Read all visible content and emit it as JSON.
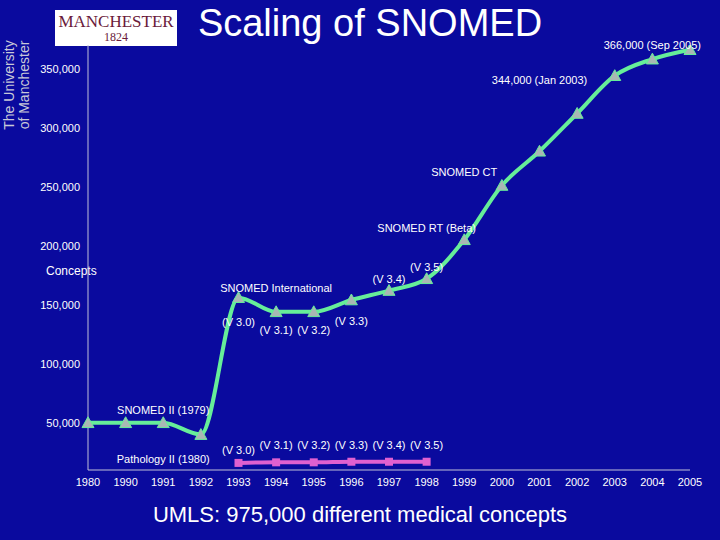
{
  "logo": {
    "name": "MANCHESTER",
    "year": "1824",
    "university": [
      "The University",
      "of Manchester"
    ]
  },
  "chart_data": {
    "type": "line",
    "title": "Scaling of SNOMED",
    "y_label": "Concepts",
    "footnote": "UMLS: 975,000 different medical concepts",
    "categories": [
      "1980",
      "1990",
      "1991",
      "1992",
      "1993",
      "1994",
      "1995",
      "1996",
      "1997",
      "1998",
      "1999",
      "2000",
      "2001",
      "2002",
      "2003",
      "2004",
      "2005"
    ],
    "series": [
      {
        "name": "SNOMED II (1979)",
        "label_x": "1991",
        "label_y": 61000,
        "color": "#66ee99",
        "marker": "triangle",
        "values": [
          50000,
          50000,
          50000,
          40000,
          156000,
          144000,
          144000,
          154000,
          162000,
          172000,
          205000,
          251000,
          280000,
          312000,
          344000,
          358000,
          366000
        ]
      },
      {
        "name": "Pathology II (1980)",
        "label_x": "1991",
        "label_y": 19000,
        "color": "#e060d0",
        "marker": "square",
        "values": [
          null,
          null,
          null,
          null,
          16000,
          16500,
          16500,
          17000,
          17000,
          17000,
          null,
          null,
          null,
          null,
          null,
          null,
          null
        ]
      }
    ],
    "annotations": [
      {
        "text": "SNOMED International",
        "x": "1994",
        "y": 164000
      },
      {
        "text": "(V 3.0)",
        "x": "1993",
        "y": 135000
      },
      {
        "text": "(V 3.1)",
        "x": "1994",
        "y": 128500
      },
      {
        "text": "(V 3.2)",
        "x": "1995",
        "y": 128500
      },
      {
        "text": "(V 3.3)",
        "x": "1996",
        "y": 136000
      },
      {
        "text": "(V 3.4)",
        "x": "1997",
        "y": 172000
      },
      {
        "text": "(V 3.5)",
        "x": "1998",
        "y": 182000
      },
      {
        "text": "SNOMED RT (Beta)",
        "x": "1998",
        "y": 215000
      },
      {
        "text": "SNOMED CT",
        "x": "1999",
        "y": 262000
      },
      {
        "text": "344,000 (Jan 2003)",
        "x": "2001",
        "y": 340000
      },
      {
        "text": "366,000 (Sep 2005)",
        "x": "2004",
        "y": 370000
      },
      {
        "text": "(V 3.0)",
        "x": "1993",
        "y": 27000
      },
      {
        "text": "(V 3.1)",
        "x": "1994",
        "y": 31000
      },
      {
        "text": "(V 3.2)",
        "x": "1995",
        "y": 31000
      },
      {
        "text": "(V 3.3)",
        "x": "1996",
        "y": 31000
      },
      {
        "text": "(V 3.4)",
        "x": "1997",
        "y": 31000
      },
      {
        "text": "(V 3.5)",
        "x": "1998",
        "y": 31000
      }
    ],
    "ylim": [
      10000,
      370000
    ],
    "yticks": [
      {
        "value": 50000,
        "label": "50,000"
      },
      {
        "value": 100000,
        "label": "100,000"
      },
      {
        "value": 150000,
        "label": "150,000"
      },
      {
        "value": 200000,
        "label": "200,000"
      },
      {
        "value": 250000,
        "label": "250,000"
      },
      {
        "value": 300000,
        "label": "300,000"
      },
      {
        "value": 350000,
        "label": "350,000"
      }
    ],
    "grid": false,
    "legend": "none"
  }
}
